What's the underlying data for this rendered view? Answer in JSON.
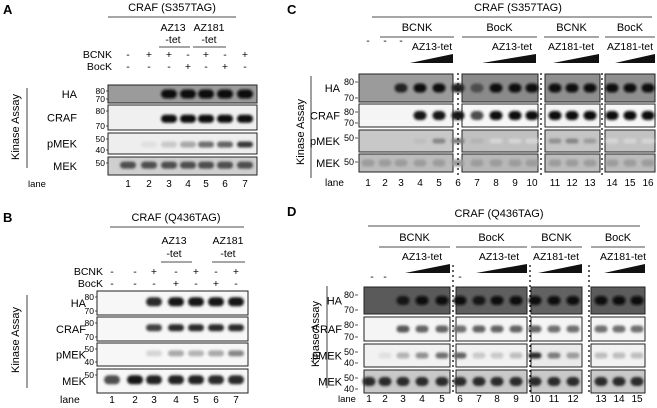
{
  "panels": {
    "A": {
      "letter": "A",
      "title": "CRAF (S357TAG)",
      "ncaa": [
        "AZ13",
        "-tet",
        "AZ181",
        "-tet"
      ],
      "row_bcnk": {
        "label": "BCNK",
        "marks": [
          "-",
          "+",
          "+",
          "-",
          "+",
          "-",
          "+"
        ]
      },
      "row_bock": {
        "label": "BocK",
        "marks": [
          "-",
          "-",
          "-",
          "+",
          "-",
          "+",
          "-"
        ]
      },
      "side": "Kinase Assay",
      "blots": [
        {
          "name": "HA",
          "mw": [
            "80",
            "70"
          ]
        },
        {
          "name": "CRAF",
          "mw": [
            "80",
            "70"
          ]
        },
        {
          "name": "pMEK",
          "mw": [
            "50",
            "40"
          ]
        },
        {
          "name": "MEK",
          "mw": [
            "50"
          ]
        }
      ],
      "lane_label": "lane",
      "lanes": [
        "1",
        "2",
        "3",
        "4",
        "5",
        "6",
        "7"
      ]
    },
    "B": {
      "letter": "B",
      "title": "CRAF (Q436TAG)",
      "ncaa": [
        "AZ13",
        "-tet",
        "AZ181",
        "-tet"
      ],
      "row_bcnk": {
        "label": "BCNK",
        "marks": [
          "-",
          "-",
          "+",
          "-",
          "+",
          "-",
          "+"
        ]
      },
      "row_bock": {
        "label": "BocK",
        "marks": [
          "-",
          "-",
          "-",
          "+",
          "-",
          "+",
          "-"
        ]
      },
      "side": "Kinase Assay",
      "blots": [
        {
          "name": "HA",
          "mw": [
            "80",
            "70"
          ]
        },
        {
          "name": "CRAF",
          "mw": [
            "80",
            "70"
          ]
        },
        {
          "name": "pMEK",
          "mw": [
            "50",
            "40"
          ]
        },
        {
          "name": "MEK",
          "mw": [
            "50"
          ]
        }
      ],
      "lane_label": "lane",
      "lanes": [
        "1",
        "2",
        "3",
        "4",
        "5",
        "6",
        "7"
      ]
    },
    "C": {
      "letter": "C",
      "title": "CRAF (S357TAG)",
      "groups": [
        "BCNK",
        "BocK",
        "BCNK",
        "BocK"
      ],
      "subs": [
        "AZ13-tet",
        "AZ13-tet",
        "AZ181-tet",
        "AZ181-tet"
      ],
      "dashes": [
        "-",
        "-",
        "-"
      ],
      "side": "Kinase Assay",
      "blots": [
        {
          "name": "HA",
          "mw": [
            "80",
            "70"
          ]
        },
        {
          "name": "CRAF",
          "mw": [
            "80",
            "70"
          ]
        },
        {
          "name": "pMEK",
          "mw": [
            "50"
          ]
        },
        {
          "name": "MEK",
          "mw": [
            "50"
          ]
        }
      ],
      "lane_label": "lane",
      "lanes": [
        "1",
        "2",
        "3",
        "4",
        "5",
        "6",
        "7",
        "8",
        "9",
        "10",
        "11",
        "12",
        "13",
        "14",
        "15",
        "16"
      ]
    },
    "D": {
      "letter": "D",
      "title": "CRAF (Q436TAG)",
      "groups": [
        "BCNK",
        "BocK",
        "BCNK",
        "BocK"
      ],
      "subs": [
        "AZ13-tet",
        "AZ13-tet",
        "AZ181-tet",
        "AZ181-tet"
      ],
      "dashes": [
        "-",
        "-",
        "-"
      ],
      "side": "Kinase Assay",
      "blots": [
        {
          "name": "HA",
          "mw": [
            "80",
            "70"
          ]
        },
        {
          "name": "CRAF",
          "mw": [
            "80",
            "70"
          ]
        },
        {
          "name": "pMEK",
          "mw": [
            "50",
            "40"
          ]
        },
        {
          "name": "MEK",
          "mw": [
            "50",
            "40"
          ]
        }
      ],
      "lane_label": "lane",
      "lanes": [
        "1",
        "2",
        "3",
        "4",
        "5",
        "6",
        "7",
        "8",
        "9",
        "10",
        "11",
        "12",
        "13",
        "14",
        "15"
      ]
    }
  }
}
